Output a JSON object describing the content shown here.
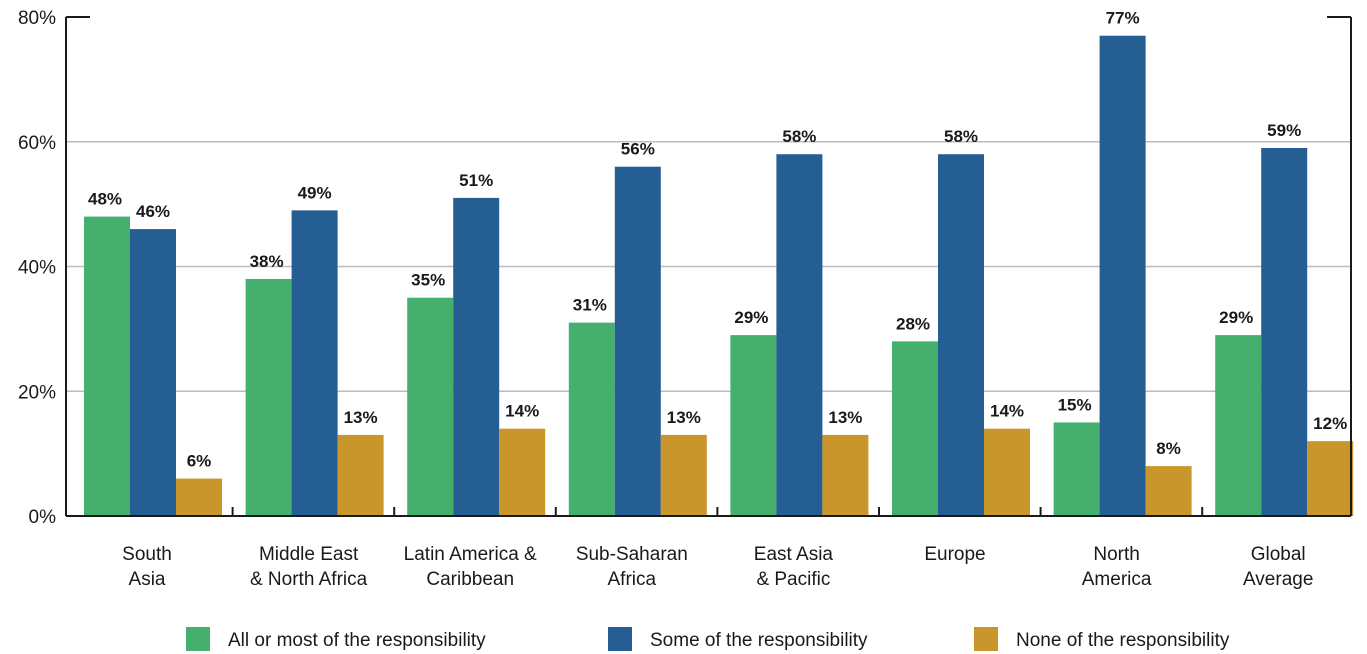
{
  "chart_data": {
    "type": "bar",
    "categories": [
      [
        "South",
        "Asia"
      ],
      [
        "Middle East",
        "& North Africa"
      ],
      [
        "Latin America &",
        "Caribbean"
      ],
      [
        "Sub-Saharan",
        "Africa"
      ],
      [
        "East Asia",
        "& Pacific"
      ],
      [
        "Europe"
      ],
      [
        "North",
        "America"
      ],
      [
        "Global",
        "Average"
      ]
    ],
    "series": [
      {
        "name": "All or most of the responsibility",
        "color": "#45b06e",
        "values": [
          48,
          38,
          35,
          31,
          29,
          28,
          15,
          29
        ],
        "labels": [
          "48%",
          "38%",
          "35%",
          "31%",
          "29%",
          "28%",
          "15%",
          "29%"
        ]
      },
      {
        "name": "Some of the responsibility",
        "color": "#245e92",
        "values": [
          46,
          49,
          51,
          56,
          58,
          58,
          77,
          59
        ],
        "labels": [
          "46%",
          "49%",
          "51%",
          "56%",
          "58%",
          "58%",
          "77%",
          "59%"
        ]
      },
      {
        "name": "None of the responsibility",
        "color": "#c9962c",
        "values": [
          6,
          13,
          14,
          13,
          13,
          14,
          8,
          12
        ],
        "labels": [
          "6%",
          "13%",
          "14%",
          "13%",
          "13%",
          "14%",
          "8%",
          "12%"
        ]
      }
    ],
    "ylim": [
      0,
      80
    ],
    "yticks": [
      0,
      20,
      40,
      60,
      80
    ],
    "ytick_labels": [
      "0%",
      "20%",
      "40%",
      "60%",
      "80%"
    ],
    "grid": true,
    "legend_position": "bottom",
    "title": "",
    "xlabel": "",
    "ylabel": ""
  }
}
